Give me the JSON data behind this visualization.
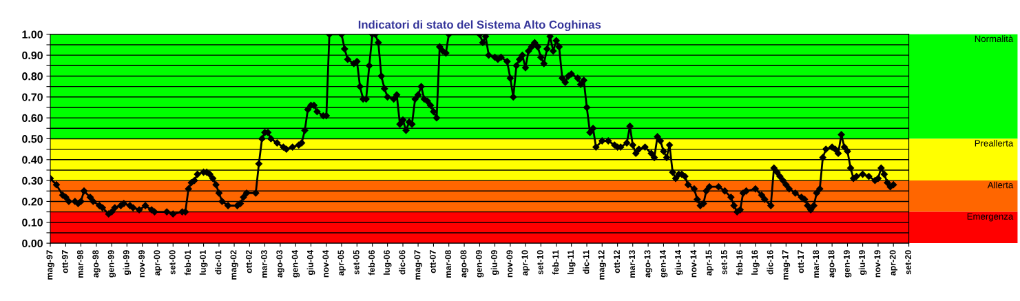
{
  "chart_data": {
    "type": "line",
    "title": "Indicatori di stato del Sistema Alto Coghinas",
    "x": [
      "1997-05",
      "1997-07",
      "1997-09",
      "1997-10",
      "1997-11",
      "1998-01",
      "1998-02",
      "1998-03",
      "1998-04",
      "1998-06",
      "1998-07",
      "1998-09",
      "1998-10",
      "1998-12",
      "1999-01",
      "1999-02",
      "1999-04",
      "1999-05",
      "1999-07",
      "1999-08",
      "1999-10",
      "1999-12",
      "2000-02",
      "2000-03",
      "2000-07",
      "2000-09",
      "2000-12",
      "2001-01",
      "2001-02",
      "2001-03",
      "2001-04",
      "2001-05",
      "2001-07",
      "2001-08",
      "2001-09",
      "2001-10",
      "2001-11",
      "2001-12",
      "2002-01",
      "2002-03",
      "2002-06",
      "2002-07",
      "2002-08",
      "2002-09",
      "2002-12",
      "2003-01",
      "2003-02",
      "2003-03",
      "2003-04",
      "2003-05",
      "2003-07",
      "2003-09",
      "2003-10",
      "2003-12",
      "2004-02",
      "2004-03",
      "2004-04",
      "2004-05",
      "2004-06",
      "2004-07",
      "2004-08",
      "2004-10",
      "2004-11",
      "2004-12",
      "2005-04",
      "2005-05",
      "2005-06",
      "2005-08",
      "2005-09",
      "2005-10",
      "2005-11",
      "2005-12",
      "2006-01",
      "2006-02",
      "2006-03",
      "2006-04",
      "2006-05",
      "2006-06",
      "2006-07",
      "2006-09",
      "2006-10",
      "2006-11",
      "2006-12",
      "2007-01",
      "2007-02",
      "2007-03",
      "2007-04",
      "2007-05",
      "2007-06",
      "2007-07",
      "2007-08",
      "2007-09",
      "2007-10",
      "2007-11",
      "2007-12",
      "2008-01",
      "2008-02",
      "2008-03",
      "2009-01",
      "2009-02",
      "2009-03",
      "2009-04",
      "2009-06",
      "2009-07",
      "2009-08",
      "2009-10",
      "2009-11",
      "2009-12",
      "2010-01",
      "2010-02",
      "2010-03",
      "2010-04",
      "2010-05",
      "2010-06",
      "2010-07",
      "2010-08",
      "2010-09",
      "2010-10",
      "2010-11",
      "2010-12",
      "2011-01",
      "2011-02",
      "2011-03",
      "2011-04",
      "2011-05",
      "2011-06",
      "2011-07",
      "2011-09",
      "2011-10",
      "2011-11",
      "2011-12",
      "2012-01",
      "2012-02",
      "2012-03",
      "2012-05",
      "2012-07",
      "2012-09",
      "2012-10",
      "2012-11",
      "2013-01",
      "2013-02",
      "2013-03",
      "2013-04",
      "2013-05",
      "2013-07",
      "2013-09",
      "2013-10",
      "2013-11",
      "2013-12",
      "2014-01",
      "2014-02",
      "2014-03",
      "2014-04",
      "2014-05",
      "2014-06",
      "2014-07",
      "2014-08",
      "2014-09",
      "2014-11",
      "2014-12",
      "2015-01",
      "2015-02",
      "2015-03",
      "2015-04",
      "2015-07",
      "2015-09",
      "2015-11",
      "2015-12",
      "2016-01",
      "2016-02",
      "2016-03",
      "2016-04",
      "2016-07",
      "2016-09",
      "2016-10",
      "2016-12",
      "2017-01",
      "2017-02",
      "2017-03",
      "2017-04",
      "2017-05",
      "2017-06",
      "2017-08",
      "2017-10",
      "2017-11",
      "2017-12",
      "2018-01",
      "2018-02",
      "2018-03",
      "2018-04",
      "2018-05",
      "2018-06",
      "2018-08",
      "2018-09",
      "2018-10",
      "2018-11",
      "2018-12",
      "2019-01",
      "2019-02",
      "2019-03",
      "2019-04",
      "2019-06",
      "2019-08",
      "2019-10",
      "2019-11",
      "2019-12",
      "2020-01",
      "2020-02",
      "2020-03",
      "2020-04"
    ],
    "series": [
      {
        "color": "#000000",
        "values": [
          0.31,
          0.28,
          0.23,
          0.22,
          0.2,
          0.2,
          0.19,
          0.2,
          0.25,
          0.22,
          0.2,
          0.18,
          0.17,
          0.14,
          0.15,
          0.17,
          0.18,
          0.19,
          0.18,
          0.17,
          0.16,
          0.18,
          0.16,
          0.15,
          0.15,
          0.14,
          0.15,
          0.15,
          0.26,
          0.29,
          0.3,
          0.33,
          0.34,
          0.34,
          0.33,
          0.31,
          0.28,
          0.24,
          0.2,
          0.18,
          0.18,
          0.19,
          0.22,
          0.24,
          0.24,
          0.38,
          0.5,
          0.53,
          0.53,
          0.5,
          0.48,
          0.46,
          0.45,
          0.46,
          0.47,
          0.48,
          0.54,
          0.64,
          0.66,
          0.66,
          0.63,
          0.61,
          0.61,
          1.0,
          1.0,
          0.93,
          0.88,
          0.86,
          0.87,
          0.75,
          0.69,
          0.69,
          0.85,
          1.0,
          1.0,
          0.96,
          0.8,
          0.74,
          0.7,
          0.69,
          0.71,
          0.57,
          0.59,
          0.54,
          0.58,
          0.57,
          0.69,
          0.71,
          0.75,
          0.69,
          0.68,
          0.66,
          0.63,
          0.6,
          0.94,
          0.92,
          0.91,
          1.0,
          1.0,
          0.96,
          0.99,
          0.9,
          0.89,
          0.88,
          0.89,
          0.87,
          0.79,
          0.7,
          0.85,
          0.88,
          0.9,
          0.84,
          0.92,
          0.94,
          0.96,
          0.94,
          0.89,
          0.86,
          0.93,
          0.99,
          0.92,
          0.97,
          0.94,
          0.79,
          0.77,
          0.8,
          0.81,
          0.79,
          0.76,
          0.78,
          0.65,
          0.53,
          0.55,
          0.46,
          0.49,
          0.49,
          0.47,
          0.46,
          0.46,
          0.48,
          0.56,
          0.47,
          0.43,
          0.45,
          0.46,
          0.43,
          0.41,
          0.51,
          0.49,
          0.44,
          0.41,
          0.47,
          0.34,
          0.31,
          0.33,
          0.33,
          0.32,
          0.28,
          0.26,
          0.21,
          0.18,
          0.19,
          0.25,
          0.27,
          0.27,
          0.25,
          0.22,
          0.18,
          0.15,
          0.16,
          0.24,
          0.25,
          0.26,
          0.23,
          0.21,
          0.18,
          0.36,
          0.34,
          0.32,
          0.3,
          0.28,
          0.26,
          0.24,
          0.22,
          0.21,
          0.18,
          0.16,
          0.18,
          0.24,
          0.26,
          0.41,
          0.45,
          0.46,
          0.45,
          0.43,
          0.52,
          0.46,
          0.44,
          0.36,
          0.31,
          0.32,
          0.33,
          0.32,
          0.3,
          0.31,
          0.36,
          0.33,
          0.29,
          0.27,
          0.28
        ]
      }
    ],
    "marker": "diamond",
    "line_style": "solid",
    "xlim": [
      "1997-05",
      "2020-09"
    ],
    "xticks": [
      {
        "value": "1997-05",
        "label": "mag-97"
      },
      {
        "value": "1997-10",
        "label": "ott-97"
      },
      {
        "value": "1998-03",
        "label": "mar-98"
      },
      {
        "value": "1998-08",
        "label": "ago-98"
      },
      {
        "value": "1999-01",
        "label": "gen-99"
      },
      {
        "value": "1999-06",
        "label": "giu-99"
      },
      {
        "value": "1999-11",
        "label": "nov-99"
      },
      {
        "value": "2000-04",
        "label": "apr-00"
      },
      {
        "value": "2000-09",
        "label": "set-00"
      },
      {
        "value": "2001-02",
        "label": "feb-01"
      },
      {
        "value": "2001-07",
        "label": "lug-01"
      },
      {
        "value": "2001-12",
        "label": "dic-01"
      },
      {
        "value": "2002-05",
        "label": "mag-02"
      },
      {
        "value": "2002-10",
        "label": "ott-02"
      },
      {
        "value": "2003-03",
        "label": "mar-03"
      },
      {
        "value": "2003-08",
        "label": "ago-03"
      },
      {
        "value": "2004-01",
        "label": "gen-04"
      },
      {
        "value": "2004-06",
        "label": "giu-04"
      },
      {
        "value": "2004-11",
        "label": "nov-04"
      },
      {
        "value": "2005-04",
        "label": "apr-05"
      },
      {
        "value": "2005-09",
        "label": "set-05"
      },
      {
        "value": "2006-02",
        "label": "feb-06"
      },
      {
        "value": "2006-07",
        "label": "lug-06"
      },
      {
        "value": "2006-12",
        "label": "dic-06"
      },
      {
        "value": "2007-05",
        "label": "mag-07"
      },
      {
        "value": "2007-10",
        "label": "ott-07"
      },
      {
        "value": "2008-03",
        "label": "mar-08"
      },
      {
        "value": "2008-08",
        "label": "ago-08"
      },
      {
        "value": "2009-01",
        "label": "gen-09"
      },
      {
        "value": "2009-06",
        "label": "giu-09"
      },
      {
        "value": "2009-11",
        "label": "nov-09"
      },
      {
        "value": "2010-04",
        "label": "apr-10"
      },
      {
        "value": "2010-09",
        "label": "set-10"
      },
      {
        "value": "2011-02",
        "label": "feb-11"
      },
      {
        "value": "2011-07",
        "label": "lug-11"
      },
      {
        "value": "2011-12",
        "label": "dic-11"
      },
      {
        "value": "2012-05",
        "label": "mag-12"
      },
      {
        "value": "2012-10",
        "label": "ott-12"
      },
      {
        "value": "2013-03",
        "label": "mar-13"
      },
      {
        "value": "2013-08",
        "label": "ago-13"
      },
      {
        "value": "2014-01",
        "label": "gen-14"
      },
      {
        "value": "2014-06",
        "label": "giu-14"
      },
      {
        "value": "2014-11",
        "label": "nov-14"
      },
      {
        "value": "2015-04",
        "label": "apr-15"
      },
      {
        "value": "2015-09",
        "label": "set-15"
      },
      {
        "value": "2016-02",
        "label": "feb-16"
      },
      {
        "value": "2016-07",
        "label": "lug-16"
      },
      {
        "value": "2016-12",
        "label": "dic-16"
      },
      {
        "value": "2017-05",
        "label": "mag-17"
      },
      {
        "value": "2017-10",
        "label": "ott-17"
      },
      {
        "value": "2018-03",
        "label": "mar-18"
      },
      {
        "value": "2018-08",
        "label": "ago-18"
      },
      {
        "value": "2019-01",
        "label": "gen-19"
      },
      {
        "value": "2019-06",
        "label": "giu-19"
      },
      {
        "value": "2019-11",
        "label": "nov-19"
      },
      {
        "value": "2020-04",
        "label": "apr-20"
      },
      {
        "value": "2020-09",
        "label": "set-20"
      }
    ],
    "ylim": [
      0,
      1
    ],
    "yticks": [
      {
        "value": 0,
        "label": "0.00"
      },
      {
        "value": 0.05,
        "label": null
      },
      {
        "value": 0.1,
        "label": "0.10"
      },
      {
        "value": 0.15,
        "label": null
      },
      {
        "value": 0.2,
        "label": "0.20"
      },
      {
        "value": 0.25,
        "label": null
      },
      {
        "value": 0.3,
        "label": "0.30"
      },
      {
        "value": 0.35,
        "label": null
      },
      {
        "value": 0.4,
        "label": "0.40"
      },
      {
        "value": 0.45,
        "label": null
      },
      {
        "value": 0.5,
        "label": "0.50"
      },
      {
        "value": 0.55,
        "label": null
      },
      {
        "value": 0.6,
        "label": "0.60"
      },
      {
        "value": 0.65,
        "label": null
      },
      {
        "value": 0.7,
        "label": "0.70"
      },
      {
        "value": 0.75,
        "label": null
      },
      {
        "value": 0.8,
        "label": "0.80"
      },
      {
        "value": 0.85,
        "label": null
      },
      {
        "value": 0.9,
        "label": "0.90"
      },
      {
        "value": 0.95,
        "label": null
      },
      {
        "value": 1,
        "label": "1.00"
      }
    ],
    "grid": "y",
    "bands": [
      {
        "axis": "y",
        "from": 0.5,
        "to": 1.0,
        "label": "Normalità",
        "color": "#00ff00"
      },
      {
        "axis": "y",
        "from": 0.3,
        "to": 0.5,
        "label": "Preallerta",
        "color": "#ffff00"
      },
      {
        "axis": "y",
        "from": 0.15,
        "to": 0.3,
        "label": "Allerta",
        "color": "#ff6600"
      },
      {
        "axis": "y",
        "from": 0.0,
        "to": 0.15,
        "label": "Emergenza",
        "color": "#ff0000"
      }
    ]
  }
}
